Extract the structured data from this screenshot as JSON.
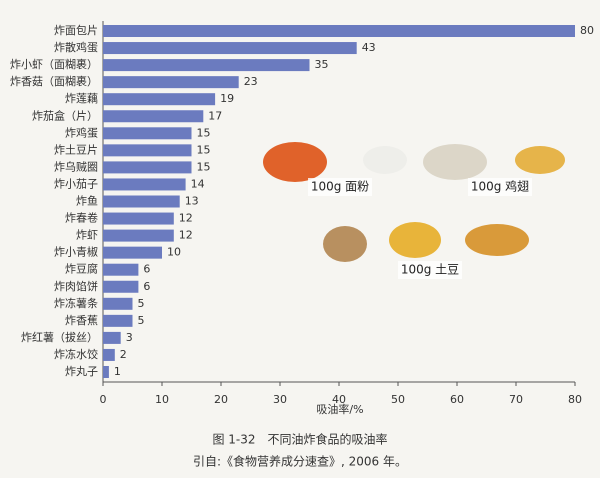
{
  "chart_data": {
    "type": "bar",
    "orientation": "horizontal",
    "categories": [
      "炸面包片",
      "炸散鸡蛋",
      "炸小虾（面糊裹）",
      "炸香菇（面糊裹）",
      "炸莲藕",
      "炸茄盒（片）",
      "炸鸡蛋",
      "炸土豆片",
      "炸乌贼圈",
      "炸小茄子",
      "炸鱼",
      "炸春卷",
      "炸虾",
      "炸小青椒",
      "炸豆腐",
      "炸肉馅饼",
      "炸冻薯条",
      "炸香蕉",
      "炸红薯（拔丝）",
      "炸冻水饺",
      "炸丸子"
    ],
    "values": [
      80,
      43,
      35,
      23,
      19,
      17,
      15,
      15,
      15,
      14,
      13,
      12,
      12,
      10,
      6,
      6,
      5,
      5,
      3,
      2,
      1
    ],
    "color": "#6b7bbf",
    "xlim": [
      0,
      80
    ],
    "xticks": [
      0,
      10,
      20,
      30,
      40,
      50,
      60,
      70,
      80
    ],
    "x_label": "吸油率/%",
    "annotations": [
      "100g 面粉",
      "100g 鸡翅",
      "100g 土豆"
    ],
    "title": "图 1-32　不同油炸食品的吸油率",
    "source": "引自:《食物营养成分速查》, 2006 年。"
  }
}
